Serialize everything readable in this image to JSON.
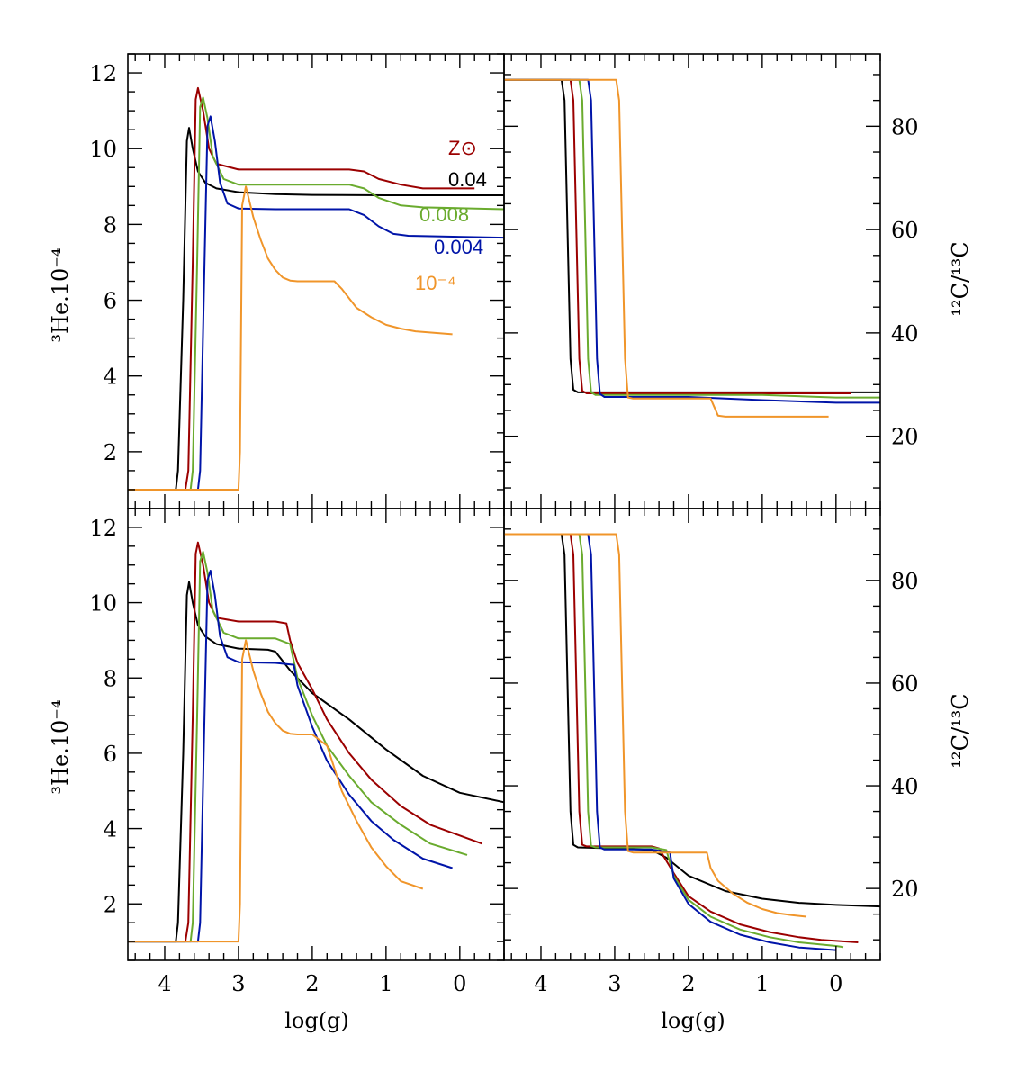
{
  "figure": {
    "xlabel": "log(g)",
    "ylabel_left": "³He.10⁻⁴",
    "ylabel_right": "¹²C/¹³C",
    "x_ticks": [
      "4",
      "3",
      "2",
      "1",
      "0"
    ],
    "y_ticks_he": [
      "2",
      "4",
      "6",
      "8",
      "10",
      "12"
    ],
    "y_ticks_c": [
      "20",
      "40",
      "60",
      "80"
    ]
  },
  "colors": {
    "Z_sun": "#9b0000",
    "0.04": "#000000",
    "0.008": "#6aab2e",
    "0.004": "#0014a8",
    "1e-4": "#f0952a"
  },
  "legend": [
    {
      "key": "Z_sun",
      "label": "Z⊙"
    },
    {
      "key": "0.04",
      "label": "0.04"
    },
    {
      "key": "0.008",
      "label": "0.008"
    },
    {
      "key": "0.004",
      "label": "0.004"
    },
    {
      "key": "1e-4",
      "label": "10⁻⁴"
    }
  ],
  "chart_data": [
    {
      "type": "line",
      "panel": "top-left",
      "xlabel": "",
      "ylabel": "³He.10⁻⁴",
      "xlim": [
        4.5,
        -0.6
      ],
      "ylim": [
        0.5,
        12.5
      ],
      "x_reversed": true,
      "series": [
        {
          "key": "0.04",
          "name": "0.04",
          "x": [
            4.5,
            3.85,
            3.82,
            3.75,
            3.7,
            3.67,
            3.62,
            3.55,
            3.45,
            3.3,
            3.0,
            2.5,
            2.0,
            1.0,
            0.0,
            -0.6
          ],
          "y": [
            1.0,
            1.0,
            1.5,
            6.0,
            10.2,
            10.55,
            10.0,
            9.4,
            9.1,
            8.95,
            8.85,
            8.8,
            8.78,
            8.77,
            8.77,
            8.77
          ]
        },
        {
          "key": "Z_sun",
          "name": "Z⊙",
          "x": [
            4.5,
            3.72,
            3.68,
            3.62,
            3.58,
            3.55,
            3.48,
            3.4,
            3.3,
            3.0,
            2.5,
            1.5,
            1.3,
            1.1,
            0.8,
            0.5,
            -0.2
          ],
          "y": [
            1.0,
            1.0,
            1.5,
            7.0,
            11.3,
            11.6,
            11.0,
            10.0,
            9.6,
            9.45,
            9.45,
            9.45,
            9.4,
            9.2,
            9.05,
            8.95,
            8.95
          ]
        },
        {
          "key": "0.008",
          "name": "0.008",
          "x": [
            4.5,
            3.65,
            3.62,
            3.56,
            3.52,
            3.48,
            3.42,
            3.35,
            3.2,
            3.0,
            2.5,
            1.5,
            1.3,
            1.1,
            0.8,
            0.5,
            -0.6
          ],
          "y": [
            1.0,
            1.0,
            1.5,
            7.0,
            11.1,
            11.35,
            10.8,
            9.8,
            9.2,
            9.05,
            9.05,
            9.05,
            8.95,
            8.7,
            8.5,
            8.45,
            8.4
          ]
        },
        {
          "key": "0.004",
          "name": "0.004",
          "x": [
            4.5,
            3.55,
            3.52,
            3.46,
            3.42,
            3.38,
            3.32,
            3.25,
            3.15,
            3.0,
            2.5,
            1.5,
            1.3,
            1.1,
            0.9,
            0.7,
            -0.6
          ],
          "y": [
            1.0,
            1.0,
            1.5,
            7.0,
            10.6,
            10.85,
            10.2,
            9.1,
            8.55,
            8.42,
            8.4,
            8.4,
            8.25,
            7.95,
            7.75,
            7.7,
            7.65
          ]
        },
        {
          "key": "1e-4",
          "name": "10⁻⁴",
          "x": [
            4.5,
            3.0,
            2.98,
            2.95,
            2.9,
            2.85,
            2.8,
            2.7,
            2.6,
            2.5,
            2.4,
            2.3,
            2.2,
            2.0,
            1.7,
            1.6,
            1.4,
            1.2,
            1.0,
            0.8,
            0.6,
            0.1
          ],
          "y": [
            1.0,
            1.0,
            2.0,
            8.5,
            9.0,
            8.6,
            8.2,
            7.6,
            7.1,
            6.8,
            6.6,
            6.52,
            6.5,
            6.5,
            6.5,
            6.3,
            5.8,
            5.55,
            5.35,
            5.25,
            5.18,
            5.1
          ]
        }
      ]
    },
    {
      "type": "line",
      "panel": "top-right",
      "xlabel": "",
      "ylabel": "¹²C/¹³C",
      "xlim": [
        4.5,
        -0.6
      ],
      "ylim": [
        6,
        94
      ],
      "x_reversed": true,
      "series": [
        {
          "key": "0.04",
          "name": "0.04",
          "x": [
            4.5,
            3.72,
            3.68,
            3.64,
            3.6,
            3.56,
            3.5,
            3.0,
            2.0,
            1.0,
            0.0,
            -0.6
          ],
          "y": [
            89,
            89,
            85,
            60,
            35,
            29,
            28.5,
            28.5,
            28.5,
            28.5,
            28.5,
            28.5
          ]
        },
        {
          "key": "Z_sun",
          "name": "Z⊙",
          "x": [
            4.5,
            3.6,
            3.56,
            3.52,
            3.48,
            3.44,
            3.38,
            3.0,
            2.0,
            1.0,
            0.0,
            -0.2
          ],
          "y": [
            89,
            89,
            85,
            60,
            35,
            28.8,
            28.3,
            28.3,
            28.3,
            28.3,
            28.3,
            28.3
          ]
        },
        {
          "key": "0.008",
          "name": "0.008",
          "x": [
            4.5,
            3.48,
            3.44,
            3.4,
            3.36,
            3.32,
            3.26,
            3.0,
            2.0,
            1.0,
            0.0,
            -0.6
          ],
          "y": [
            89,
            89,
            85,
            60,
            35,
            28.5,
            28.0,
            28.0,
            28.0,
            28.0,
            27.5,
            27.5
          ]
        },
        {
          "key": "0.004",
          "name": "0.004",
          "x": [
            4.5,
            3.36,
            3.32,
            3.28,
            3.24,
            3.2,
            3.14,
            3.0,
            2.0,
            1.0,
            0.0,
            -0.6
          ],
          "y": [
            89,
            89,
            85,
            60,
            35,
            28.2,
            27.6,
            27.6,
            27.6,
            27.0,
            26.5,
            26.5
          ]
        },
        {
          "key": "1e-4",
          "name": "10⁻⁴",
          "x": [
            4.5,
            2.98,
            2.94,
            2.9,
            2.86,
            2.82,
            2.75,
            2.0,
            1.7,
            1.6,
            1.5,
            1.0,
            0.1
          ],
          "y": [
            89,
            89,
            85,
            60,
            35,
            27.5,
            27.3,
            27.3,
            27.3,
            24,
            23.8,
            23.8,
            23.8
          ]
        }
      ]
    },
    {
      "type": "line",
      "panel": "bottom-left",
      "xlabel": "log(g)",
      "ylabel": "³He.10⁻⁴",
      "xlim": [
        4.5,
        -0.6
      ],
      "ylim": [
        0.5,
        12.5
      ],
      "x_reversed": true,
      "series": [
        {
          "key": "0.04",
          "name": "0.04",
          "x": [
            4.5,
            3.85,
            3.82,
            3.75,
            3.7,
            3.67,
            3.62,
            3.55,
            3.45,
            3.3,
            3.0,
            2.6,
            2.5,
            2.3,
            2.0,
            1.5,
            1.0,
            0.5,
            0.0,
            -0.6
          ],
          "y": [
            1.0,
            1.0,
            1.5,
            6.0,
            10.2,
            10.55,
            10.0,
            9.4,
            9.1,
            8.9,
            8.78,
            8.75,
            8.7,
            8.2,
            7.6,
            6.9,
            6.1,
            5.4,
            4.95,
            4.7
          ]
        },
        {
          "key": "Z_sun",
          "name": "Z⊙",
          "x": [
            4.5,
            3.72,
            3.68,
            3.62,
            3.58,
            3.55,
            3.48,
            3.4,
            3.3,
            3.0,
            2.5,
            2.35,
            2.3,
            2.2,
            2.0,
            1.8,
            1.5,
            1.2,
            0.8,
            0.4,
            -0.3
          ],
          "y": [
            1.0,
            1.0,
            1.5,
            7.0,
            11.3,
            11.6,
            11.0,
            10.0,
            9.6,
            9.5,
            9.5,
            9.45,
            9.0,
            8.4,
            7.7,
            6.9,
            6.0,
            5.3,
            4.6,
            4.1,
            3.6
          ]
        },
        {
          "key": "0.008",
          "name": "0.008",
          "x": [
            4.5,
            3.65,
            3.62,
            3.56,
            3.52,
            3.48,
            3.42,
            3.35,
            3.2,
            3.0,
            2.5,
            2.3,
            2.2,
            2.0,
            1.8,
            1.5,
            1.2,
            0.8,
            0.4,
            -0.1
          ],
          "y": [
            1.0,
            1.0,
            1.5,
            7.0,
            11.1,
            11.35,
            10.8,
            9.8,
            9.2,
            9.05,
            9.05,
            8.9,
            8.0,
            7.0,
            6.2,
            5.4,
            4.7,
            4.1,
            3.6,
            3.3
          ]
        },
        {
          "key": "0.004",
          "name": "0.004",
          "x": [
            4.5,
            3.55,
            3.52,
            3.46,
            3.42,
            3.38,
            3.32,
            3.25,
            3.15,
            3.0,
            2.5,
            2.25,
            2.2,
            2.0,
            1.8,
            1.5,
            1.2,
            0.9,
            0.5,
            0.1
          ],
          "y": [
            1.0,
            1.0,
            1.5,
            7.0,
            10.6,
            10.85,
            10.2,
            9.1,
            8.55,
            8.42,
            8.4,
            8.35,
            7.8,
            6.7,
            5.8,
            4.9,
            4.2,
            3.7,
            3.2,
            2.95
          ]
        },
        {
          "key": "1e-4",
          "name": "10⁻⁴",
          "x": [
            4.5,
            3.0,
            2.98,
            2.95,
            2.9,
            2.85,
            2.8,
            2.7,
            2.6,
            2.5,
            2.4,
            2.3,
            2.2,
            2.0,
            1.8,
            1.7,
            1.6,
            1.4,
            1.2,
            1.0,
            0.8,
            0.5
          ],
          "y": [
            1.0,
            1.0,
            2.0,
            8.5,
            9.0,
            8.6,
            8.2,
            7.6,
            7.1,
            6.8,
            6.6,
            6.52,
            6.5,
            6.5,
            6.2,
            5.6,
            5.0,
            4.2,
            3.5,
            3.0,
            2.6,
            2.4
          ]
        }
      ]
    },
    {
      "type": "line",
      "panel": "bottom-right",
      "xlabel": "log(g)",
      "ylabel": "¹²C/¹³C",
      "xlim": [
        4.5,
        -0.6
      ],
      "ylim": [
        6,
        94
      ],
      "x_reversed": true,
      "series": [
        {
          "key": "0.04",
          "name": "0.04",
          "x": [
            4.5,
            3.72,
            3.68,
            3.64,
            3.6,
            3.56,
            3.5,
            3.0,
            2.5,
            2.3,
            2.0,
            1.5,
            1.0,
            0.5,
            0.0,
            -0.6
          ],
          "y": [
            89,
            89,
            85,
            60,
            35,
            28.5,
            28,
            27.8,
            27.5,
            26,
            22.5,
            19.5,
            18,
            17.2,
            16.8,
            16.5
          ]
        },
        {
          "key": "Z_sun",
          "name": "Z⊙",
          "x": [
            4.5,
            3.6,
            3.56,
            3.52,
            3.48,
            3.44,
            3.38,
            3.0,
            2.5,
            2.4,
            2.2,
            2.0,
            1.7,
            1.3,
            0.9,
            0.5,
            0.2,
            -0.3
          ],
          "y": [
            89,
            89,
            85,
            60,
            35,
            28.5,
            28.2,
            28.2,
            28.2,
            27.8,
            23,
            18.5,
            15.5,
            13.0,
            11.5,
            10.5,
            10.0,
            9.5
          ]
        },
        {
          "key": "0.008",
          "name": "0.008",
          "x": [
            4.5,
            3.48,
            3.44,
            3.4,
            3.36,
            3.32,
            3.26,
            3.0,
            2.5,
            2.3,
            2.2,
            2.0,
            1.7,
            1.3,
            0.9,
            0.5,
            0.0,
            -0.1
          ],
          "y": [
            89,
            89,
            85,
            60,
            35,
            28.3,
            28.0,
            28.0,
            28.0,
            27.5,
            22.5,
            17.8,
            14.5,
            12.0,
            10.5,
            9.5,
            8.8,
            8.6
          ]
        },
        {
          "key": "0.004",
          "name": "0.004",
          "x": [
            4.5,
            3.36,
            3.32,
            3.28,
            3.24,
            3.2,
            3.14,
            3.0,
            2.5,
            2.25,
            2.2,
            2.0,
            1.7,
            1.3,
            0.9,
            0.5,
            0.0
          ],
          "y": [
            89,
            89,
            85,
            60,
            35,
            28.0,
            27.6,
            27.6,
            27.6,
            27.0,
            22.0,
            17.0,
            13.5,
            11.0,
            9.5,
            8.5,
            8.0
          ]
        },
        {
          "key": "1e-4",
          "name": "10⁻⁴",
          "x": [
            4.5,
            2.98,
            2.94,
            2.9,
            2.86,
            2.82,
            2.75,
            2.0,
            1.75,
            1.7,
            1.6,
            1.4,
            1.2,
            1.0,
            0.8,
            0.6,
            0.4
          ],
          "y": [
            89,
            89,
            85,
            60,
            35,
            27.3,
            27.0,
            27.0,
            27.0,
            24,
            21.5,
            19.0,
            17.2,
            16.0,
            15.2,
            14.8,
            14.5
          ]
        }
      ]
    }
  ]
}
